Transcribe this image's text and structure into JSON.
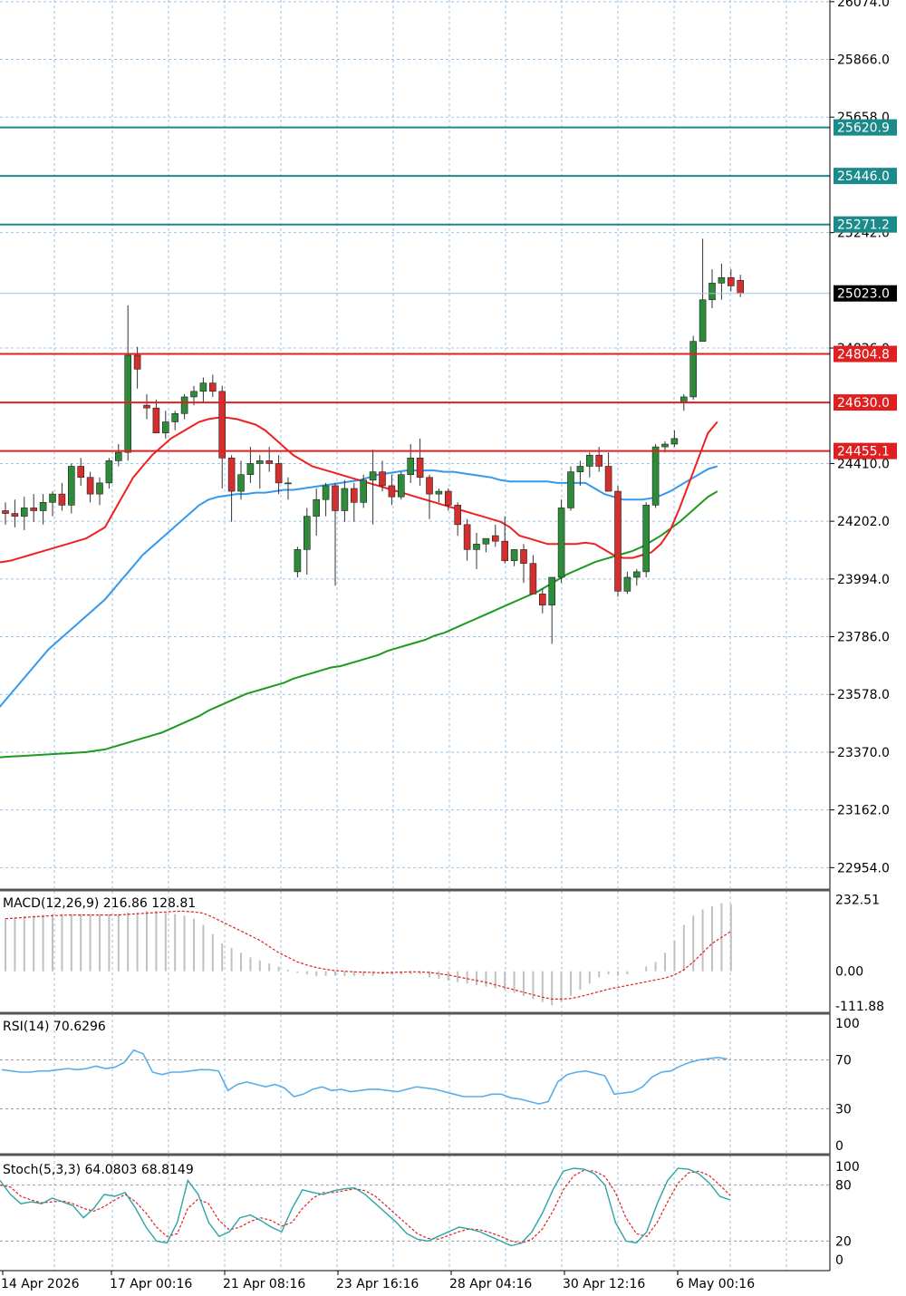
{
  "colors": {
    "background": "#ffffff",
    "grid": "#9ec3e6",
    "bull_candle": "#2e8b3a",
    "bear_candle": "#d32f2f",
    "ma_fast": "#f02020",
    "ma_mid": "#3399ee",
    "ma_slow": "#1e9a1e",
    "resistance": "#1a8a8a",
    "support": "#e02020",
    "rsi": "#5aaee8",
    "stoch_main": "#2aa5a5",
    "stoch_signal": "#e02020",
    "macd_signal": "#e02020",
    "macd_hist": "#c0c0c0"
  },
  "chart_data": [
    {
      "type": "candlestick",
      "panel": "price",
      "y_ticks": [
        "26074.0",
        "25866.0",
        "25658.0",
        "25242.0",
        "24826.0",
        "24410.0",
        "24202.0",
        "23994.0",
        "23786.0",
        "23578.0",
        "23370.0",
        "23162.0",
        "22954.0"
      ],
      "ylim": [
        22880,
        26080
      ],
      "current_price": "25023.0",
      "levels": [
        {
          "kind": "resistance",
          "label": "25620.9",
          "value": 25620.9
        },
        {
          "kind": "resistance",
          "label": "25446.0",
          "value": 25446.0
        },
        {
          "kind": "resistance",
          "label": "25271.2",
          "value": 25271.2
        },
        {
          "kind": "support",
          "label": "24804.8",
          "value": 24804.8
        },
        {
          "kind": "support",
          "label": "24630.0",
          "value": 24630.0
        },
        {
          "kind": "support",
          "label": "24455.1",
          "value": 24455.1
        }
      ],
      "candles": [
        [
          24240,
          24270,
          24190,
          24230
        ],
        [
          24230,
          24280,
          24180,
          24220
        ],
        [
          24220,
          24290,
          24170,
          24250
        ],
        [
          24250,
          24300,
          24200,
          24240
        ],
        [
          24240,
          24300,
          24190,
          24270
        ],
        [
          24270,
          24310,
          24220,
          24300
        ],
        [
          24300,
          24340,
          24240,
          24260
        ],
        [
          24260,
          24410,
          24230,
          24400
        ],
        [
          24400,
          24430,
          24330,
          24360
        ],
        [
          24360,
          24380,
          24270,
          24300
        ],
        [
          24300,
          24360,
          24260,
          24340
        ],
        [
          24340,
          24430,
          24320,
          24420
        ],
        [
          24420,
          24480,
          24400,
          24450
        ],
        [
          24450,
          24980,
          24420,
          24800
        ],
        [
          24800,
          24830,
          24680,
          24750
        ],
        [
          24620,
          24660,
          24570,
          24610
        ],
        [
          24610,
          24640,
          24520,
          24520
        ],
        [
          24520,
          24600,
          24500,
          24560
        ],
        [
          24560,
          24600,
          24530,
          24590
        ],
        [
          24590,
          24660,
          24570,
          24650
        ],
        [
          24650,
          24690,
          24620,
          24670
        ],
        [
          24670,
          24720,
          24630,
          24700
        ],
        [
          24700,
          24730,
          24650,
          24670
        ],
        [
          24670,
          24690,
          24320,
          24430
        ],
        [
          24430,
          24440,
          24200,
          24310
        ],
        [
          24310,
          24420,
          24280,
          24370
        ],
        [
          24370,
          24470,
          24340,
          24410
        ],
        [
          24410,
          24440,
          24320,
          24420
        ],
        [
          24420,
          24470,
          24380,
          24410
        ],
        [
          24410,
          24440,
          24300,
          24340
        ],
        [
          24340,
          24360,
          24280,
          24340
        ],
        [
          24020,
          24110,
          24000,
          24100
        ],
        [
          24100,
          24250,
          24010,
          24220
        ],
        [
          24220,
          24320,
          24150,
          24280
        ],
        [
          24280,
          24340,
          24220,
          24330
        ],
        [
          24330,
          24340,
          23970,
          24240
        ],
        [
          24240,
          24350,
          24200,
          24320
        ],
        [
          24320,
          24340,
          24200,
          24270
        ],
        [
          24270,
          24370,
          24250,
          24350
        ],
        [
          24350,
          24460,
          24190,
          24380
        ],
        [
          24380,
          24420,
          24310,
          24330
        ],
        [
          24330,
          24370,
          24260,
          24290
        ],
        [
          24290,
          24380,
          24280,
          24370
        ],
        [
          24370,
          24480,
          24340,
          24430
        ],
        [
          24430,
          24500,
          24330,
          24360
        ],
        [
          24360,
          24370,
          24210,
          24300
        ],
        [
          24300,
          24320,
          24270,
          24310
        ],
        [
          24310,
          24320,
          24240,
          24260
        ],
        [
          24260,
          24270,
          24150,
          24190
        ],
        [
          24190,
          24210,
          24060,
          24100
        ],
        [
          24100,
          24160,
          24030,
          24120
        ],
        [
          24120,
          24140,
          24090,
          24140
        ],
        [
          24150,
          24190,
          24110,
          24130
        ],
        [
          24130,
          24220,
          24050,
          24060
        ],
        [
          24060,
          24100,
          24040,
          24100
        ],
        [
          24100,
          24120,
          23980,
          24050
        ],
        [
          24050,
          24080,
          23950,
          23940
        ],
        [
          23940,
          23960,
          23870,
          23900
        ],
        [
          23900,
          24000,
          23760,
          24000
        ],
        [
          24000,
          24280,
          23980,
          24250
        ],
        [
          24250,
          24400,
          24240,
          24380
        ],
        [
          24380,
          24420,
          24330,
          24400
        ],
        [
          24400,
          24450,
          24360,
          24440
        ],
        [
          24440,
          24470,
          24380,
          24400
        ],
        [
          24400,
          24450,
          24330,
          24310
        ],
        [
          24310,
          24330,
          23930,
          23950
        ],
        [
          23950,
          24020,
          23940,
          24000
        ],
        [
          24000,
          24030,
          23970,
          24020
        ],
        [
          24020,
          24270,
          24000,
          24260
        ],
        [
          24260,
          24480,
          24250,
          24470
        ],
        [
          24470,
          24490,
          24450,
          24480
        ],
        [
          24480,
          24530,
          24470,
          24500
        ],
        [
          24630,
          24660,
          24600,
          24650
        ],
        [
          24650,
          24870,
          24640,
          24850
        ],
        [
          24850,
          25220,
          24860,
          25000
        ],
        [
          25000,
          25110,
          24970,
          25060
        ],
        [
          25060,
          25130,
          25000,
          25080
        ],
        [
          25080,
          25110,
          25030,
          25050
        ],
        [
          25070,
          25090,
          25010,
          25023
        ]
      ],
      "ma_fast": [
        24050,
        24055,
        24060,
        24070,
        24080,
        24090,
        24100,
        24110,
        24120,
        24130,
        24140,
        24160,
        24180,
        24240,
        24300,
        24360,
        24400,
        24440,
        24470,
        24500,
        24520,
        24540,
        24560,
        24570,
        24575,
        24575,
        24570,
        24560,
        24550,
        24530,
        24500,
        24470,
        24440,
        24420,
        24400,
        24390,
        24380,
        24370,
        24360,
        24350,
        24340,
        24330,
        24320,
        24310,
        24300,
        24290,
        24280,
        24270,
        24260,
        24250,
        24240,
        24230,
        24220,
        24210,
        24200,
        24180,
        24150,
        24140,
        24130,
        24120,
        24120,
        24120,
        24120,
        24125,
        24120,
        24100,
        24080,
        24070,
        24070,
        24080,
        24090,
        24120,
        24170,
        24250,
        24340,
        24430,
        24520,
        24560
      ],
      "ma_mid": [
        23500,
        23540,
        23580,
        23620,
        23660,
        23700,
        23740,
        23770,
        23800,
        23830,
        23860,
        23890,
        23920,
        23960,
        24000,
        24040,
        24080,
        24110,
        24140,
        24170,
        24200,
        24230,
        24260,
        24280,
        24290,
        24295,
        24300,
        24300,
        24305,
        24305,
        24310,
        24315,
        24315,
        24320,
        24325,
        24330,
        24335,
        24340,
        24345,
        24350,
        24360,
        24370,
        24375,
        24380,
        24385,
        24385,
        24385,
        24385,
        24380,
        24380,
        24375,
        24370,
        24365,
        24360,
        24350,
        24345,
        24345,
        24345,
        24345,
        24345,
        24340,
        24340,
        24340,
        24340,
        24320,
        24300,
        24290,
        24280,
        24280,
        24280,
        24285,
        24295,
        24310,
        24330,
        24350,
        24370,
        24390,
        24400
      ],
      "ma_slow": [
        23350,
        23352,
        23354,
        23356,
        23358,
        23360,
        23362,
        23364,
        23366,
        23368,
        23370,
        23375,
        23380,
        23390,
        23400,
        23410,
        23420,
        23430,
        23440,
        23455,
        23470,
        23485,
        23500,
        23520,
        23535,
        23550,
        23565,
        23580,
        23590,
        23600,
        23610,
        23620,
        23635,
        23645,
        23655,
        23665,
        23675,
        23680,
        23690,
        23700,
        23710,
        23720,
        23735,
        23745,
        23755,
        23765,
        23775,
        23790,
        23800,
        23815,
        23830,
        23845,
        23860,
        23875,
        23890,
        23905,
        23920,
        23935,
        23950,
        23970,
        23990,
        24010,
        24025,
        24040,
        24055,
        24065,
        24075,
        24085,
        24095,
        24110,
        24130,
        24150,
        24175,
        24200,
        24230,
        24260,
        24290,
        24310
      ]
    },
    {
      "type": "histogram",
      "panel": "macd",
      "label": "MACD(12,26,9) 216.86 128.81",
      "y_ticks": [
        "232.51",
        "0.00",
        "-111.88"
      ],
      "ylim": [
        -130,
        260
      ],
      "histogram": [
        170,
        175,
        178,
        180,
        182,
        185,
        185,
        185,
        185,
        185,
        185,
        185,
        185,
        190,
        190,
        195,
        195,
        190,
        185,
        180,
        170,
        150,
        120,
        90,
        75,
        60,
        45,
        35,
        25,
        15,
        5,
        -5,
        -10,
        -15,
        -15,
        -15,
        -15,
        -15,
        -15,
        -15,
        -10,
        -10,
        -10,
        -10,
        -10,
        -20,
        -25,
        -30,
        -35,
        -40,
        -45,
        -50,
        -55,
        -60,
        -70,
        -80,
        -90,
        -100,
        -110,
        -100,
        -80,
        -60,
        -40,
        -20,
        -10,
        -15,
        -10,
        0,
        15,
        30,
        60,
        100,
        150,
        180,
        200,
        210,
        220,
        216.86
      ],
      "signal": [
        170,
        172,
        174,
        176,
        178,
        180,
        181,
        182,
        182,
        182,
        182,
        182,
        182,
        184,
        186,
        188,
        190,
        192,
        194,
        194,
        192,
        188,
        175,
        160,
        145,
        130,
        115,
        100,
        80,
        60,
        45,
        30,
        20,
        12,
        6,
        2,
        0,
        -2,
        -3,
        -4,
        -5,
        -4,
        -3,
        -2,
        -2,
        -4,
        -8,
        -12,
        -18,
        -24,
        -30,
        -36,
        -44,
        -52,
        -60,
        -68,
        -76,
        -84,
        -90,
        -90,
        -88,
        -82,
        -74,
        -66,
        -58,
        -52,
        -46,
        -40,
        -34,
        -28,
        -22,
        -12,
        5,
        30,
        60,
        90,
        110,
        128.81
      ]
    },
    {
      "type": "line",
      "panel": "rsi",
      "label": "RSI(14) 70.6296",
      "y_ticks": [
        "100",
        "70",
        "30",
        "0"
      ],
      "ylim": [
        0,
        100
      ],
      "values": [
        62,
        61,
        60,
        60,
        61,
        61,
        62,
        63,
        62,
        63,
        65,
        63,
        64,
        68,
        78,
        75,
        60,
        58,
        60,
        60,
        61,
        62,
        62,
        61,
        45,
        50,
        52,
        50,
        48,
        50,
        47,
        40,
        42,
        46,
        48,
        45,
        46,
        44,
        45,
        46,
        46,
        45,
        44,
        46,
        48,
        47,
        46,
        44,
        42,
        40,
        40,
        40,
        42,
        42,
        39,
        38,
        36,
        34,
        36,
        52,
        58,
        60,
        61,
        59,
        57,
        42,
        43,
        44,
        48,
        56,
        60,
        61,
        65,
        68,
        70,
        71,
        72,
        70.63
      ]
    },
    {
      "type": "line",
      "panel": "stoch",
      "label": "Stoch(5,3,3) 64.0803 68.8149",
      "y_ticks": [
        "100",
        "80",
        "20",
        "0"
      ],
      "ylim": [
        0,
        100
      ],
      "main": [
        85,
        70,
        60,
        62,
        60,
        66,
        62,
        58,
        45,
        55,
        70,
        68,
        72,
        55,
        35,
        20,
        18,
        40,
        85,
        70,
        40,
        25,
        30,
        45,
        48,
        42,
        35,
        30,
        55,
        75,
        72,
        70,
        74,
        76,
        77,
        70,
        60,
        50,
        40,
        28,
        22,
        20,
        25,
        30,
        35,
        33,
        30,
        25,
        20,
        15,
        18,
        30,
        50,
        75,
        95,
        98,
        97,
        92,
        80,
        40,
        20,
        18,
        30,
        60,
        85,
        98,
        97,
        92,
        82,
        68,
        64.08
      ],
      "signal": [
        80,
        78,
        68,
        64,
        61,
        62,
        63,
        60,
        55,
        52,
        57,
        64,
        70,
        62,
        50,
        35,
        25,
        28,
        55,
        65,
        60,
        42,
        32,
        35,
        41,
        45,
        42,
        36,
        40,
        55,
        66,
        72,
        72,
        74,
        76,
        74,
        68,
        58,
        48,
        38,
        28,
        23,
        22,
        26,
        30,
        33,
        32,
        29,
        25,
        20,
        18,
        22,
        33,
        52,
        75,
        90,
        96,
        95,
        89,
        72,
        45,
        28,
        25,
        40,
        62,
        82,
        93,
        95,
        90,
        80,
        68.81
      ]
    }
  ],
  "x_axis": {
    "labels": [
      "14 Apr 2026",
      "17 Apr 00:16",
      "21 Apr 08:16",
      "23 Apr 16:16",
      "28 Apr 04:16",
      "30 Apr 12:16",
      "6 May 00:16"
    ]
  }
}
